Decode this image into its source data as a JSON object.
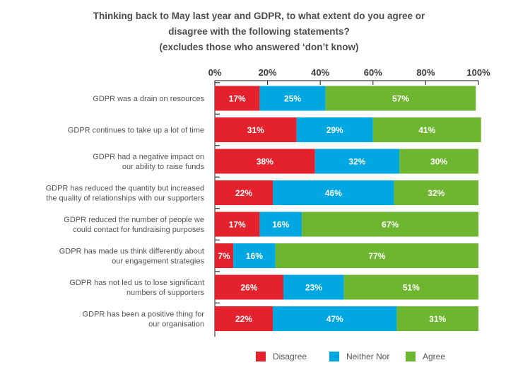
{
  "title_lines": [
    "Thinking back to May last year and GDPR, to what extent do you agree or",
    "disagree with the following statements?",
    "(excludes those who answered ‘don’t know)"
  ],
  "colors": {
    "Disagree": "#e4222e",
    "Neither Nor": "#00a7e1",
    "Agree": "#6eb630"
  },
  "chart_data": {
    "type": "bar",
    "orientation": "horizontal",
    "stacked": true,
    "xlim": [
      0,
      100
    ],
    "ticks": [
      "0%",
      "20%",
      "40%",
      "60%",
      "80%",
      "100%"
    ],
    "tick_values": [
      0,
      20,
      40,
      60,
      80,
      100
    ],
    "legend_position": "bottom",
    "categories": [
      [
        "GDPR was a drain on resources"
      ],
      [
        "GDPR continues to take up a lot of time"
      ],
      [
        "GDPR had a negative impact on",
        "our ability to raise funds"
      ],
      [
        "GDPR has reduced the quantity but increased",
        "the quality of relationships with our supporters"
      ],
      [
        "GDPR reduced the number of people we",
        "could contact for fundraising purposes"
      ],
      [
        "GDPR has made us think differently about",
        "our engagement strategies"
      ],
      [
        "GDPR has not led us to lose significant",
        "numbers of supporters"
      ],
      [
        "GDPR has been a positive thing for",
        "our organisation"
      ]
    ],
    "series": [
      {
        "name": "Disagree",
        "values": [
          17,
          31,
          38,
          22,
          17,
          7,
          26,
          22
        ]
      },
      {
        "name": "Neither Nor",
        "values": [
          25,
          29,
          32,
          46,
          16,
          16,
          23,
          47
        ]
      },
      {
        "name": "Agree",
        "values": [
          57,
          41,
          30,
          32,
          67,
          77,
          51,
          31
        ]
      }
    ]
  }
}
